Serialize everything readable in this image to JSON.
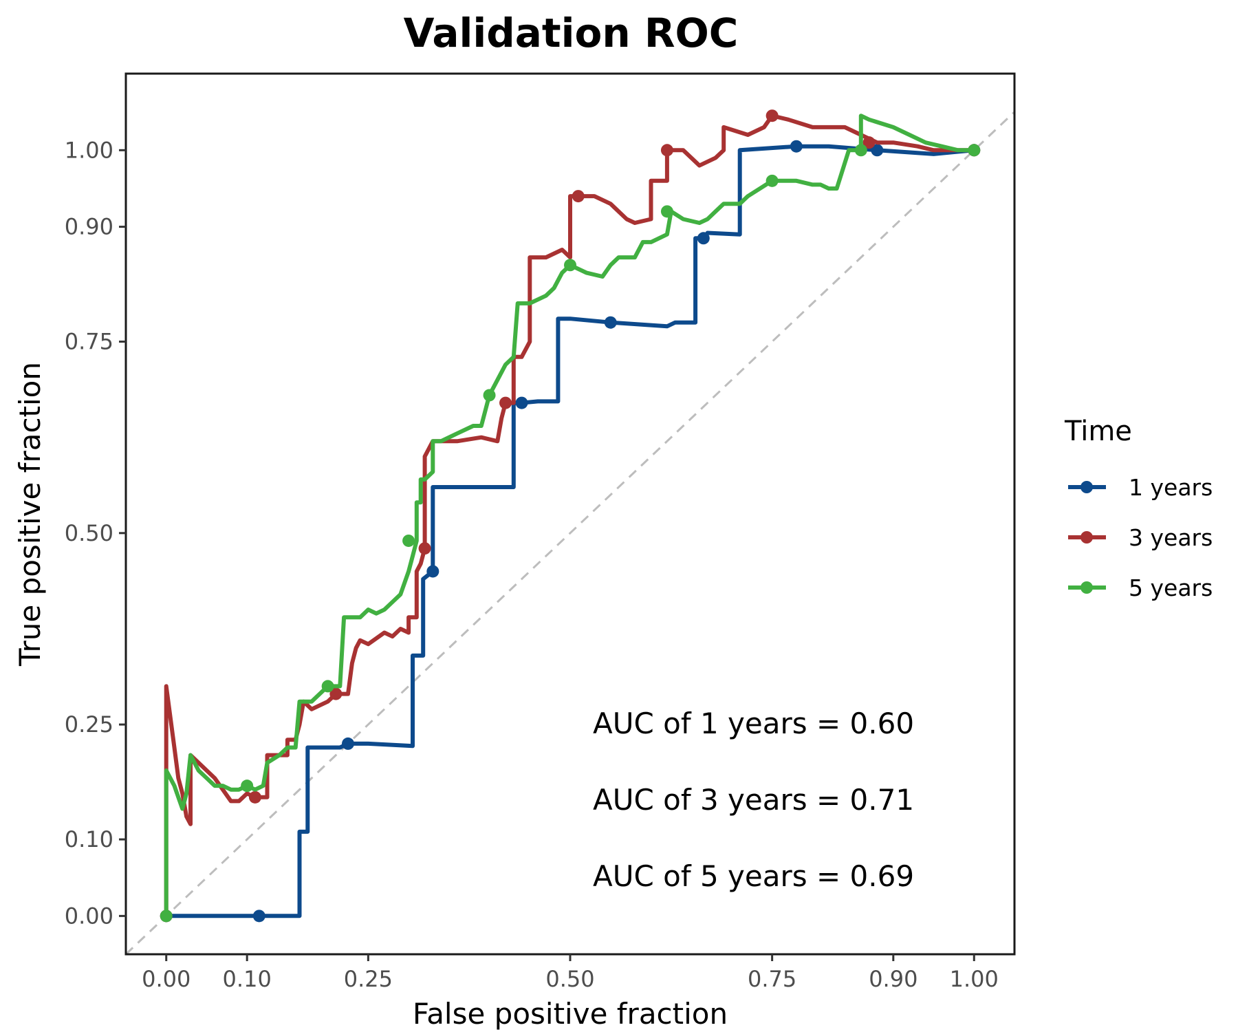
{
  "chart_data": {
    "type": "line",
    "title": "Validation ROC",
    "xlabel": "False positive fraction",
    "ylabel": "True positive fraction",
    "xlim": [
      -0.05,
      1.05
    ],
    "ylim": [
      -0.05,
      1.1
    ],
    "x_ticks": [
      0.0,
      0.1,
      0.25,
      0.5,
      0.75,
      0.9,
      1.0
    ],
    "x_tick_labels": [
      "0.00",
      "0.10",
      "0.25",
      "0.50",
      "0.75",
      "0.90",
      "1.00"
    ],
    "y_ticks": [
      0.0,
      0.1,
      0.25,
      0.5,
      0.75,
      0.9,
      1.0
    ],
    "y_tick_labels": [
      "0.00",
      "0.10",
      "0.25",
      "0.50",
      "0.75",
      "0.90",
      "1.00"
    ],
    "reference_line": {
      "from": [
        0,
        0
      ],
      "to": [
        1,
        1
      ],
      "style": "dashed",
      "color": "#bdbdbd"
    },
    "legend": {
      "title": "Time",
      "placement": "right"
    },
    "series": [
      {
        "name": "1 years",
        "color": "#0d4a8c",
        "points": [
          [
            0.0,
            0.0
          ],
          [
            0.115,
            0.0
          ],
          [
            0.165,
            0.0
          ],
          [
            0.165,
            0.11
          ],
          [
            0.175,
            0.11
          ],
          [
            0.175,
            0.22
          ],
          [
            0.2,
            0.22
          ],
          [
            0.215,
            0.22
          ],
          [
            0.225,
            0.225
          ],
          [
            0.25,
            0.225
          ],
          [
            0.305,
            0.222
          ],
          [
            0.305,
            0.34
          ],
          [
            0.318,
            0.34
          ],
          [
            0.318,
            0.44
          ],
          [
            0.33,
            0.45
          ],
          [
            0.33,
            0.56
          ],
          [
            0.36,
            0.56
          ],
          [
            0.39,
            0.56
          ],
          [
            0.43,
            0.56
          ],
          [
            0.43,
            0.67
          ],
          [
            0.44,
            0.67
          ],
          [
            0.46,
            0.672
          ],
          [
            0.485,
            0.672
          ],
          [
            0.485,
            0.78
          ],
          [
            0.5,
            0.78
          ],
          [
            0.55,
            0.775
          ],
          [
            0.62,
            0.77
          ],
          [
            0.63,
            0.775
          ],
          [
            0.655,
            0.775
          ],
          [
            0.655,
            0.885
          ],
          [
            0.665,
            0.885
          ],
          [
            0.67,
            0.892
          ],
          [
            0.71,
            0.89
          ],
          [
            0.71,
            1.0
          ],
          [
            0.78,
            1.005
          ],
          [
            0.82,
            1.005
          ],
          [
            0.88,
            1.0
          ],
          [
            0.95,
            0.995
          ],
          [
            1.0,
            1.0
          ]
        ],
        "markers": [
          [
            0.0,
            0.0
          ],
          [
            0.115,
            0.0
          ],
          [
            0.225,
            0.225
          ],
          [
            0.33,
            0.45
          ],
          [
            0.44,
            0.67
          ],
          [
            0.55,
            0.775
          ],
          [
            0.665,
            0.885
          ],
          [
            0.78,
            1.005
          ],
          [
            0.88,
            1.0
          ],
          [
            1.0,
            1.0
          ]
        ]
      },
      {
        "name": "3 years",
        "color": "#a83232",
        "points": [
          [
            0.0,
            0.0
          ],
          [
            0.0,
            0.3
          ],
          [
            0.01,
            0.22
          ],
          [
            0.015,
            0.18
          ],
          [
            0.02,
            0.16
          ],
          [
            0.025,
            0.13
          ],
          [
            0.03,
            0.12
          ],
          [
            0.03,
            0.21
          ],
          [
            0.04,
            0.2
          ],
          [
            0.06,
            0.18
          ],
          [
            0.08,
            0.15
          ],
          [
            0.09,
            0.15
          ],
          [
            0.1,
            0.16
          ],
          [
            0.11,
            0.155
          ],
          [
            0.125,
            0.155
          ],
          [
            0.125,
            0.21
          ],
          [
            0.14,
            0.21
          ],
          [
            0.15,
            0.21
          ],
          [
            0.15,
            0.23
          ],
          [
            0.16,
            0.23
          ],
          [
            0.165,
            0.25
          ],
          [
            0.17,
            0.28
          ],
          [
            0.18,
            0.27
          ],
          [
            0.2,
            0.28
          ],
          [
            0.21,
            0.29
          ],
          [
            0.22,
            0.29
          ],
          [
            0.225,
            0.29
          ],
          [
            0.23,
            0.33
          ],
          [
            0.235,
            0.35
          ],
          [
            0.24,
            0.36
          ],
          [
            0.25,
            0.355
          ],
          [
            0.27,
            0.37
          ],
          [
            0.28,
            0.365
          ],
          [
            0.29,
            0.375
          ],
          [
            0.3,
            0.37
          ],
          [
            0.3,
            0.39
          ],
          [
            0.31,
            0.39
          ],
          [
            0.31,
            0.45
          ],
          [
            0.315,
            0.46
          ],
          [
            0.32,
            0.48
          ],
          [
            0.32,
            0.6
          ],
          [
            0.33,
            0.62
          ],
          [
            0.36,
            0.62
          ],
          [
            0.39,
            0.625
          ],
          [
            0.41,
            0.62
          ],
          [
            0.415,
            0.65
          ],
          [
            0.42,
            0.67
          ],
          [
            0.43,
            0.67
          ],
          [
            0.43,
            0.73
          ],
          [
            0.44,
            0.73
          ],
          [
            0.45,
            0.75
          ],
          [
            0.45,
            0.86
          ],
          [
            0.47,
            0.86
          ],
          [
            0.49,
            0.87
          ],
          [
            0.5,
            0.86
          ],
          [
            0.5,
            0.94
          ],
          [
            0.51,
            0.94
          ],
          [
            0.53,
            0.94
          ],
          [
            0.55,
            0.93
          ],
          [
            0.57,
            0.91
          ],
          [
            0.58,
            0.905
          ],
          [
            0.6,
            0.91
          ],
          [
            0.6,
            0.96
          ],
          [
            0.61,
            0.96
          ],
          [
            0.62,
            0.96
          ],
          [
            0.62,
            1.0
          ],
          [
            0.64,
            1.0
          ],
          [
            0.66,
            0.98
          ],
          [
            0.68,
            0.99
          ],
          [
            0.69,
            1.0
          ],
          [
            0.69,
            1.03
          ],
          [
            0.72,
            1.02
          ],
          [
            0.74,
            1.03
          ],
          [
            0.75,
            1.045
          ],
          [
            0.77,
            1.04
          ],
          [
            0.8,
            1.03
          ],
          [
            0.84,
            1.03
          ],
          [
            0.86,
            1.02
          ],
          [
            0.88,
            1.01
          ],
          [
            0.9,
            1.01
          ],
          [
            0.93,
            1.005
          ],
          [
            0.95,
            1.0
          ],
          [
            1.0,
            1.0
          ]
        ],
        "markers": [
          [
            0.0,
            0.0
          ],
          [
            0.11,
            0.155
          ],
          [
            0.21,
            0.29
          ],
          [
            0.32,
            0.48
          ],
          [
            0.42,
            0.67
          ],
          [
            0.51,
            0.94
          ],
          [
            0.62,
            1.0
          ],
          [
            0.75,
            1.045
          ],
          [
            0.87,
            1.01
          ],
          [
            1.0,
            1.0
          ]
        ]
      },
      {
        "name": "5 years",
        "color": "#41b041",
        "points": [
          [
            0.0,
            0.0
          ],
          [
            0.0,
            0.19
          ],
          [
            0.01,
            0.17
          ],
          [
            0.015,
            0.155
          ],
          [
            0.02,
            0.14
          ],
          [
            0.025,
            0.16
          ],
          [
            0.03,
            0.21
          ],
          [
            0.04,
            0.19
          ],
          [
            0.05,
            0.18
          ],
          [
            0.06,
            0.17
          ],
          [
            0.07,
            0.17
          ],
          [
            0.08,
            0.165
          ],
          [
            0.09,
            0.165
          ],
          [
            0.1,
            0.17
          ],
          [
            0.11,
            0.165
          ],
          [
            0.12,
            0.17
          ],
          [
            0.125,
            0.2
          ],
          [
            0.14,
            0.21
          ],
          [
            0.15,
            0.22
          ],
          [
            0.16,
            0.22
          ],
          [
            0.165,
            0.28
          ],
          [
            0.18,
            0.28
          ],
          [
            0.2,
            0.3
          ],
          [
            0.215,
            0.3
          ],
          [
            0.22,
            0.39
          ],
          [
            0.23,
            0.39
          ],
          [
            0.24,
            0.39
          ],
          [
            0.25,
            0.4
          ],
          [
            0.26,
            0.395
          ],
          [
            0.27,
            0.4
          ],
          [
            0.28,
            0.41
          ],
          [
            0.29,
            0.42
          ],
          [
            0.3,
            0.45
          ],
          [
            0.305,
            0.47
          ],
          [
            0.31,
            0.49
          ],
          [
            0.31,
            0.54
          ],
          [
            0.315,
            0.54
          ],
          [
            0.315,
            0.57
          ],
          [
            0.32,
            0.57
          ],
          [
            0.33,
            0.58
          ],
          [
            0.33,
            0.62
          ],
          [
            0.34,
            0.62
          ],
          [
            0.36,
            0.63
          ],
          [
            0.38,
            0.64
          ],
          [
            0.39,
            0.64
          ],
          [
            0.4,
            0.68
          ],
          [
            0.41,
            0.7
          ],
          [
            0.42,
            0.72
          ],
          [
            0.43,
            0.73
          ],
          [
            0.435,
            0.8
          ],
          [
            0.45,
            0.8
          ],
          [
            0.47,
            0.81
          ],
          [
            0.48,
            0.82
          ],
          [
            0.49,
            0.84
          ],
          [
            0.5,
            0.85
          ],
          [
            0.52,
            0.84
          ],
          [
            0.54,
            0.835
          ],
          [
            0.55,
            0.85
          ],
          [
            0.56,
            0.86
          ],
          [
            0.58,
            0.86
          ],
          [
            0.59,
            0.88
          ],
          [
            0.6,
            0.88
          ],
          [
            0.62,
            0.89
          ],
          [
            0.625,
            0.92
          ],
          [
            0.64,
            0.91
          ],
          [
            0.66,
            0.905
          ],
          [
            0.67,
            0.91
          ],
          [
            0.68,
            0.92
          ],
          [
            0.69,
            0.93
          ],
          [
            0.71,
            0.93
          ],
          [
            0.72,
            0.94
          ],
          [
            0.75,
            0.96
          ],
          [
            0.78,
            0.96
          ],
          [
            0.8,
            0.955
          ],
          [
            0.81,
            0.955
          ],
          [
            0.82,
            0.95
          ],
          [
            0.83,
            0.95
          ],
          [
            0.845,
            1.0
          ],
          [
            0.86,
            1.0
          ],
          [
            0.86,
            1.045
          ],
          [
            0.87,
            1.04
          ],
          [
            0.9,
            1.03
          ],
          [
            0.92,
            1.02
          ],
          [
            0.94,
            1.01
          ],
          [
            0.96,
            1.005
          ],
          [
            0.98,
            1.0
          ],
          [
            1.0,
            1.0
          ]
        ],
        "markers": [
          [
            0.0,
            0.0
          ],
          [
            0.1,
            0.17
          ],
          [
            0.2,
            0.3
          ],
          [
            0.3,
            0.49
          ],
          [
            0.4,
            0.68
          ],
          [
            0.5,
            0.85
          ],
          [
            0.62,
            0.92
          ],
          [
            0.75,
            0.96
          ],
          [
            0.86,
            1.0
          ],
          [
            1.0,
            1.0
          ]
        ]
      }
    ],
    "annotations": [
      "AUC of 1 years = 0.60",
      "AUC of 3 years = 0.71",
      "AUC of 5 years = 0.69"
    ]
  }
}
